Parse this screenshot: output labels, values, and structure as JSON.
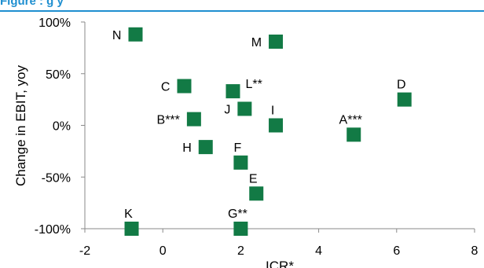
{
  "header": {
    "title_fragment": "Figure       :        g                                                    y"
  },
  "chart_data": {
    "type": "scatter",
    "title": "",
    "xlabel": "ICR*",
    "ylabel": "Change in EBIT, yoy",
    "xlim": [
      -2,
      8
    ],
    "ylim": [
      -100,
      100
    ],
    "x_ticks": [
      -2,
      0,
      2,
      4,
      6,
      8
    ],
    "y_ticks": [
      -100,
      -50,
      0,
      50,
      100
    ],
    "x_tick_labels": [
      "-2",
      "0",
      "2",
      "4",
      "6",
      "8"
    ],
    "y_tick_labels": [
      "-100%",
      "-50%",
      "0%",
      "50%",
      "100%"
    ],
    "grid": false,
    "legend": "none",
    "marker_color": "#127a45",
    "points": [
      {
        "label": "N",
        "x": -0.7,
        "y": 88,
        "label_pos": "left"
      },
      {
        "label": "M",
        "x": 2.9,
        "y": 81,
        "label_pos": "left"
      },
      {
        "label": "C",
        "x": 0.55,
        "y": 38,
        "label_pos": "left"
      },
      {
        "label": "L**",
        "x": 1.8,
        "y": 33,
        "label_pos": "right"
      },
      {
        "label": "D",
        "x": 6.2,
        "y": 25,
        "label_pos": "above"
      },
      {
        "label": "J",
        "x": 2.1,
        "y": 16,
        "label_pos": "left"
      },
      {
        "label": "B***",
        "x": 0.8,
        "y": 6,
        "label_pos": "left"
      },
      {
        "label": "I",
        "x": 2.9,
        "y": 0,
        "label_pos": "above"
      },
      {
        "label": "A***",
        "x": 4.9,
        "y": -9,
        "label_pos": "above"
      },
      {
        "label": "H",
        "x": 1.1,
        "y": -21,
        "label_pos": "left"
      },
      {
        "label": "F",
        "x": 2.0,
        "y": -36,
        "label_pos": "above"
      },
      {
        "label": "E",
        "x": 2.4,
        "y": -66,
        "label_pos": "above"
      },
      {
        "label": "K",
        "x": -0.8,
        "y": -100,
        "label_pos": "above"
      },
      {
        "label": "G**",
        "x": 2.0,
        "y": -100,
        "label_pos": "above"
      }
    ]
  }
}
